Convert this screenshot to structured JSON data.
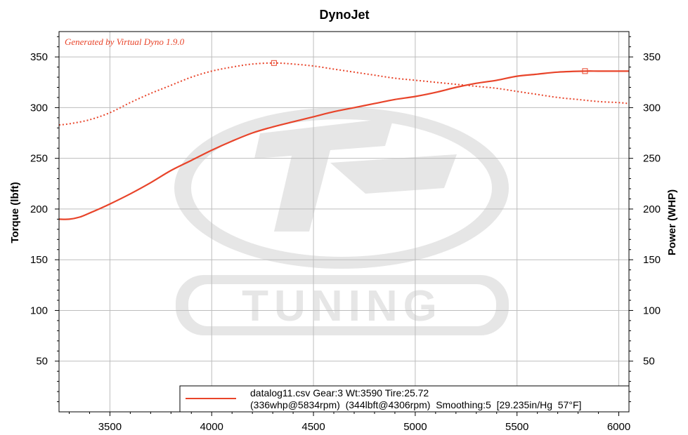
{
  "chart_data": {
    "type": "line",
    "title": "DynoJet",
    "annotation": "Generated by Virtual Dyno 1.9.0",
    "ylabel": "Torque (lbft)",
    "y2label": "Power (WHP)",
    "xlim": [
      3250,
      6050
    ],
    "ylim": [
      0,
      375
    ],
    "y2lim": [
      0,
      375
    ],
    "x_ticks": [
      3500,
      4000,
      4500,
      5000,
      5500,
      6000
    ],
    "y_ticks": [
      50,
      100,
      150,
      200,
      250,
      300,
      350
    ],
    "y2_ticks": [
      50,
      100,
      150,
      200,
      250,
      300,
      350
    ],
    "grid": true,
    "colors": {
      "series": "#e8442a",
      "grid": "#bdbdbd",
      "watermark": "#e6e6e6"
    },
    "watermark_text": "TUNING",
    "series": [
      {
        "axis": "right",
        "style": "solid",
        "x": [
          3250,
          3300,
          3350,
          3400,
          3500,
          3600,
          3700,
          3800,
          3900,
          4000,
          4100,
          4200,
          4300,
          4400,
          4500,
          4600,
          4700,
          4800,
          4900,
          5000,
          5100,
          5200,
          5300,
          5400,
          5500,
          5600,
          5700,
          5834,
          5900,
          6000,
          6050
        ],
        "values": [
          190,
          190,
          192,
          196,
          205,
          215,
          226,
          238,
          248,
          258,
          267,
          275,
          281,
          286,
          291,
          296,
          300,
          304,
          308,
          311,
          315,
          320,
          324,
          327,
          331,
          333,
          335,
          336,
          336,
          336,
          336
        ]
      },
      {
        "axis": "left",
        "style": "dotted",
        "x": [
          3250,
          3300,
          3400,
          3500,
          3600,
          3700,
          3800,
          3900,
          4000,
          4100,
          4200,
          4306,
          4400,
          4500,
          4600,
          4700,
          4800,
          4900,
          5000,
          5100,
          5200,
          5300,
          5400,
          5500,
          5600,
          5700,
          5800,
          5900,
          6000,
          6050
        ],
        "values": [
          283,
          284,
          288,
          295,
          305,
          314,
          322,
          330,
          336,
          340,
          343,
          344,
          343,
          341,
          338,
          335,
          332,
          329,
          327,
          325,
          323,
          321,
          319,
          316,
          313,
          310,
          308,
          306,
          305,
          304
        ]
      }
    ],
    "markers": [
      {
        "series": 1,
        "x": 4306,
        "y": 344
      },
      {
        "series": 0,
        "x": 5834,
        "y": 336
      }
    ],
    "legend": {
      "position": "bottom-right",
      "line1": "datalog11.csv Gear:3 Wt:3590 Tire:25.72",
      "line2": "(336whp@5834rpm)  (344lbft@4306rpm)  Smoothing:5  [29.235in/Hg  57°F]"
    }
  }
}
